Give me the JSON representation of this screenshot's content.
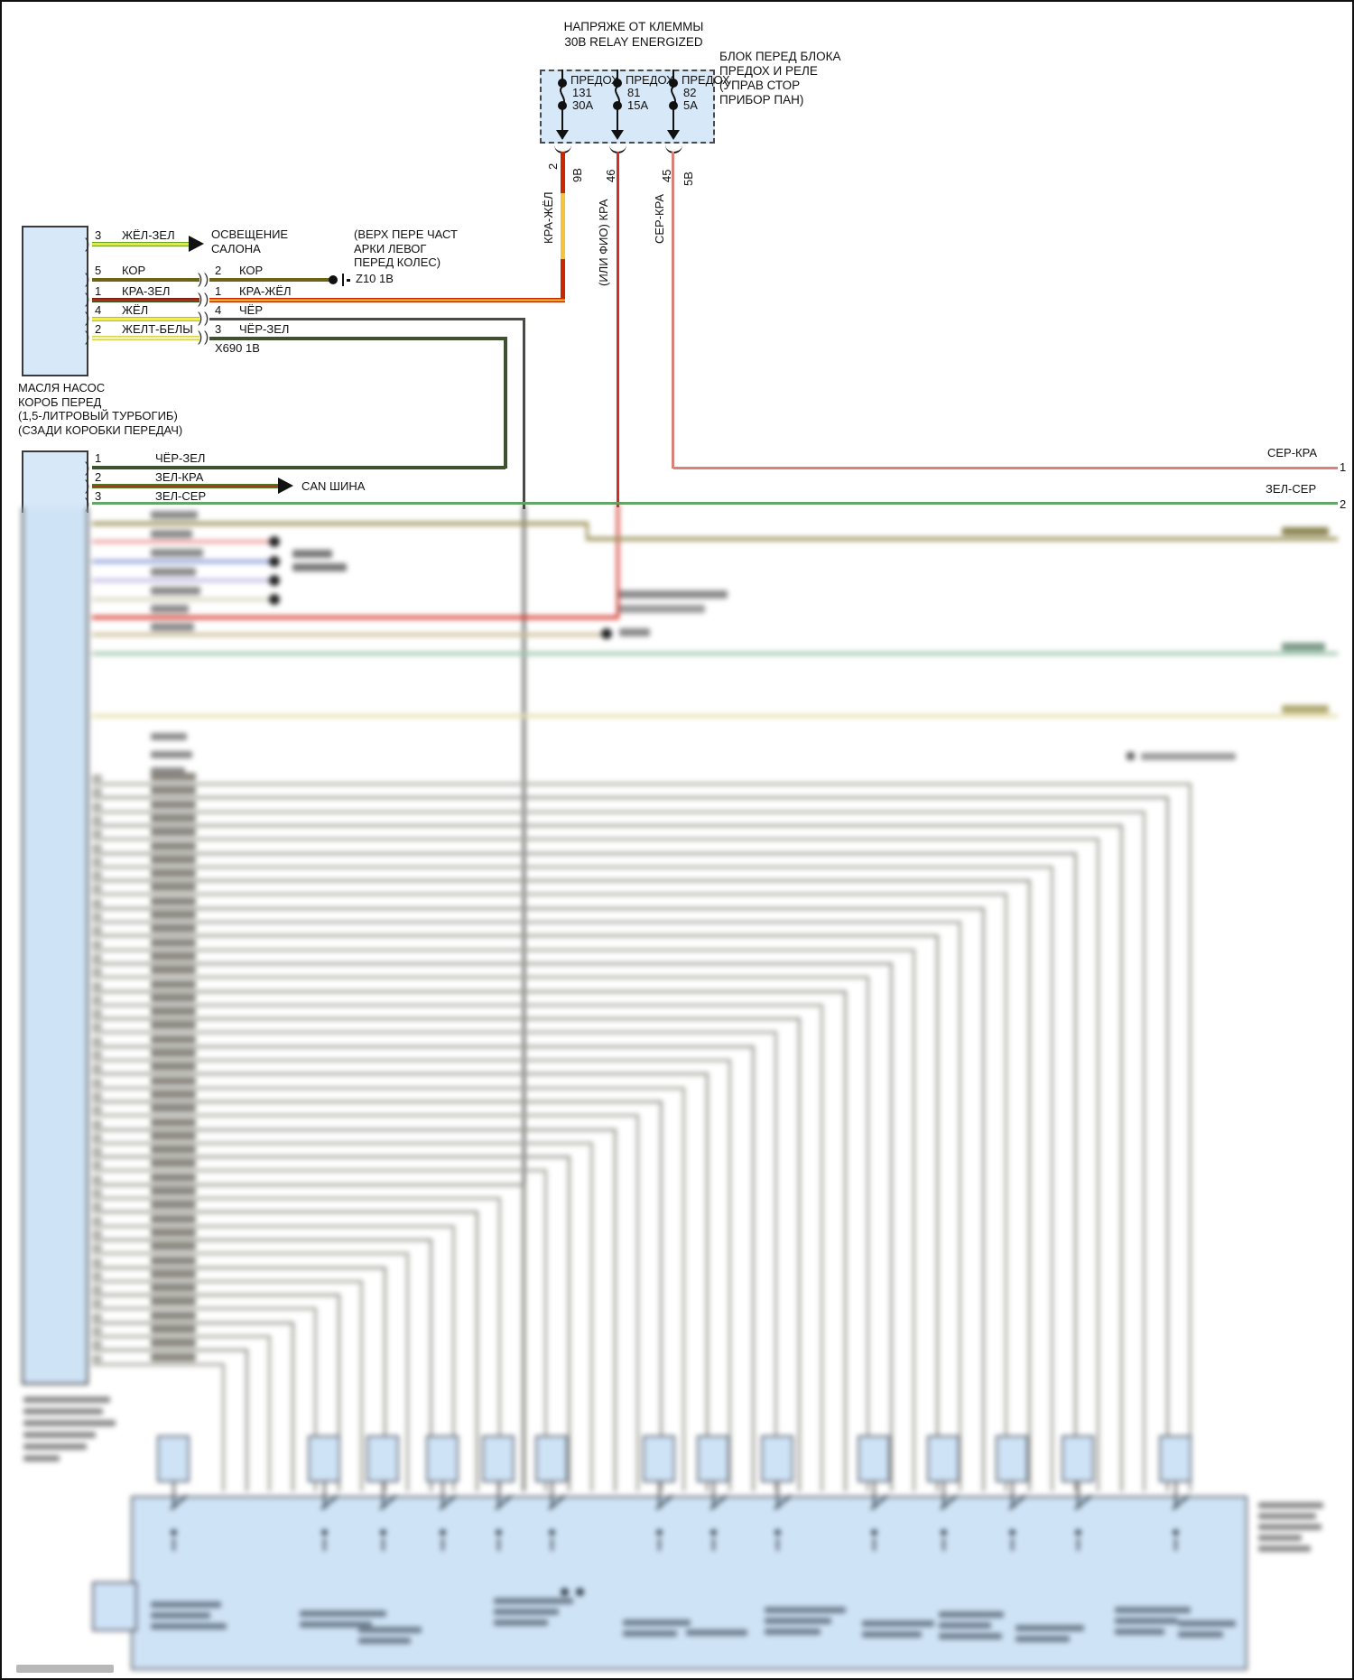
{
  "palette": {
    "connector_fill": "#d7e8f8",
    "wire_red": "#cf2f26",
    "wire_pink": "#d9827a",
    "wire_green": "#63a768",
    "wire_dark_green": "#3f5230",
    "wire_gray": "#9b9b95",
    "line_black": "#111111"
  },
  "fuse_box": {
    "title_line1": "НАПРЯЖЕ ОТ КЛЕММЫ",
    "title_line2": "30В RELAY ENERGIZED",
    "side_note": "БЛОК ПЕРЕД БЛОКА\nПРЕДОХ И РЕЛЕ\n(УПРАВ СТОР\nПРИБОР ПАН)",
    "fuses": [
      {
        "name": "ПРЕДОХ",
        "num": "131",
        "amps": "30А",
        "pin": "2",
        "sub": "9В",
        "wire": "КРА-ЖЁЛ"
      },
      {
        "name": "ПРЕДОХ",
        "num": "81",
        "amps": "15А",
        "pin": "46",
        "sub": "",
        "wire": "(ИЛИ ФИО) КРА"
      },
      {
        "name": "ПРЕДОХ",
        "num": "82",
        "amps": "5А",
        "pin": "45",
        "sub": "5В",
        "wire": "СЕР-КРА"
      }
    ]
  },
  "connector1": {
    "caption": "МАСЛЯ НАСОС\nКОРОБ ПЕРЕД\n(1,5-ЛИТРОВЫЙ ТУРБОГИБ)\n(СЗАДИ КОРОБКИ ПЕРЕДАЧ)",
    "wheel_note": "(ВЕРХ ПЕРЕ ЧАСТ\nАРКИ ЛЕВОГ\nПЕРЕД КОЛЕС)",
    "interior_light": "ОСВЕЩЕНИЕ\nСАЛОНА",
    "ground_label": "Z10 1В",
    "splice_label": "Х690 1В",
    "rows": [
      {
        "pin": "3",
        "wire": "ЖЁЛ-ЗЕЛ",
        "pin2": "",
        "wire2": ""
      },
      {
        "pin": "5",
        "wire": "КОР",
        "pin2": "2",
        "wire2": "КОР"
      },
      {
        "pin": "1",
        "wire": "КРА-ЗЕЛ",
        "pin2": "1",
        "wire2": "КРА-ЖЁЛ"
      },
      {
        "pin": "4",
        "wire": "ЖЁЛ",
        "pin2": "4",
        "wire2": "ЧЁР"
      },
      {
        "pin": "2",
        "wire": "ЖЕЛТ-БЕЛЫ",
        "pin2": "3",
        "wire2": "ЧЁР-ЗЕЛ"
      }
    ]
  },
  "connector2": {
    "can_label": "CAN ШИНА",
    "rows": [
      {
        "pin": "1",
        "wire": "ЧЁР-ЗЕЛ"
      },
      {
        "pin": "2",
        "wire": "ЗЕЛ-КРА"
      },
      {
        "pin": "3",
        "wire": "ЗЕЛ-СЕР"
      }
    ]
  },
  "right_edge": {
    "pins": [
      {
        "wire": "СЕР-КРА",
        "pin": "1"
      },
      {
        "wire": "ЗЕЛ-СЕР",
        "pin": "2"
      }
    ]
  }
}
